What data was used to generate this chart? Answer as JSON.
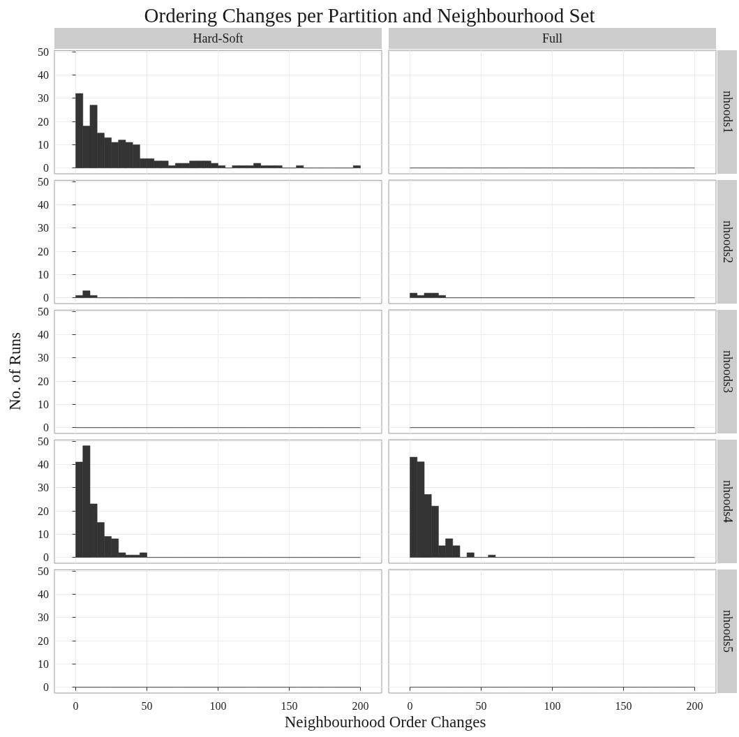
{
  "chart_data": [
    {
      "type": "histogram",
      "title": "Ordering Changes per Partition and Neighbourhood Set",
      "subtitle": "Hard-Soft",
      "color": "#333333",
      "bins": [
        0,
        5,
        10,
        15,
        20,
        25,
        30,
        35,
        40,
        45,
        50,
        55,
        60,
        65,
        70,
        75,
        80,
        85,
        90,
        95,
        100,
        105,
        110,
        115,
        120,
        125,
        130,
        135,
        140,
        145,
        150,
        155,
        160,
        165,
        170,
        175,
        180,
        185,
        190,
        195,
        200
      ],
      "values": [
        32,
        18,
        27,
        15,
        13,
        11,
        12,
        11,
        10,
        4,
        4,
        3,
        3,
        1,
        2,
        2,
        3,
        3,
        3,
        2,
        1,
        0,
        1,
        1,
        1,
        2,
        1,
        1,
        1,
        0,
        0,
        1,
        0,
        0,
        0,
        0,
        0,
        0,
        0,
        1
      ],
      "xlim": [
        -15,
        215
      ],
      "ylim": [
        -2.5,
        50.5
      ],
      "xticks": [
        0,
        50,
        100,
        150,
        200
      ],
      "yticks": [
        0,
        10,
        20,
        30,
        40,
        50
      ],
      "grid": true,
      "tick_labels": "y"
    },
    {
      "type": "histogram",
      "subtitle": "Full",
      "y2label": "nhoods1",
      "color": "#333333",
      "bins": [
        0,
        5,
        10,
        15,
        20,
        25,
        30,
        35,
        40,
        45,
        50,
        55,
        60,
        65,
        70,
        75,
        80,
        85,
        90,
        95,
        100,
        105,
        110,
        115,
        120,
        125,
        130,
        135,
        140,
        145,
        150,
        155,
        160,
        165,
        170,
        175,
        180,
        185,
        190,
        195,
        200
      ],
      "values": [
        0,
        0,
        0,
        0,
        0,
        0,
        0,
        0,
        0,
        0,
        0,
        0,
        0,
        0,
        0,
        0,
        0,
        0,
        0,
        0,
        0,
        0,
        0,
        0,
        0,
        0,
        0,
        0,
        0,
        0,
        0,
        0,
        0,
        0,
        0,
        0,
        0,
        0,
        0,
        0
      ],
      "xlim": [
        -15,
        215
      ],
      "ylim": [
        -2.5,
        50.5
      ],
      "xticks": [
        0,
        50,
        100,
        150,
        200
      ],
      "yticks": [
        0,
        10,
        20,
        30,
        40,
        50
      ],
      "grid": true,
      "tick_labels": false
    },
    {
      "type": "histogram",
      "color": "#333333",
      "bins": [
        0,
        5,
        10,
        15,
        20,
        25,
        30,
        35,
        40,
        45,
        50,
        55,
        60,
        65,
        70,
        75,
        80,
        85,
        90,
        95,
        100,
        105,
        110,
        115,
        120,
        125,
        130,
        135,
        140,
        145,
        150,
        155,
        160,
        165,
        170,
        175,
        180,
        185,
        190,
        195,
        200
      ],
      "values": [
        1,
        3,
        1,
        0,
        0,
        0,
        0,
        0,
        0,
        0,
        0,
        0,
        0,
        0,
        0,
        0,
        0,
        0,
        0,
        0,
        0,
        0,
        0,
        0,
        0,
        0,
        0,
        0,
        0,
        0,
        0,
        0,
        0,
        0,
        0,
        0,
        0,
        0,
        0,
        0
      ],
      "xlim": [
        -15,
        215
      ],
      "ylim": [
        -2.5,
        50.5
      ],
      "xticks": [
        0,
        50,
        100,
        150,
        200
      ],
      "yticks": [
        0,
        10,
        20,
        30,
        40,
        50
      ],
      "grid": true,
      "tick_labels": "y"
    },
    {
      "type": "histogram",
      "y2label": "nhoods2",
      "color": "#333333",
      "bins": [
        0,
        5,
        10,
        15,
        20,
        25,
        30,
        35,
        40,
        45,
        50,
        55,
        60,
        65,
        70,
        75,
        80,
        85,
        90,
        95,
        100,
        105,
        110,
        115,
        120,
        125,
        130,
        135,
        140,
        145,
        150,
        155,
        160,
        165,
        170,
        175,
        180,
        185,
        190,
        195,
        200
      ],
      "values": [
        2,
        1,
        2,
        2,
        1,
        0,
        0,
        0,
        0,
        0,
        0,
        0,
        0,
        0,
        0,
        0,
        0,
        0,
        0,
        0,
        0,
        0,
        0,
        0,
        0,
        0,
        0,
        0,
        0,
        0,
        0,
        0,
        0,
        0,
        0,
        0,
        0,
        0,
        0,
        0
      ],
      "xlim": [
        -15,
        215
      ],
      "ylim": [
        -2.5,
        50.5
      ],
      "xticks": [
        0,
        50,
        100,
        150,
        200
      ],
      "yticks": [
        0,
        10,
        20,
        30,
        40,
        50
      ],
      "grid": true,
      "tick_labels": false
    },
    {
      "type": "histogram",
      "ylabel": "No. of Runs",
      "color": "#333333",
      "bins": [
        0,
        5,
        10,
        15,
        20,
        25,
        30,
        35,
        40,
        45,
        50,
        55,
        60,
        65,
        70,
        75,
        80,
        85,
        90,
        95,
        100,
        105,
        110,
        115,
        120,
        125,
        130,
        135,
        140,
        145,
        150,
        155,
        160,
        165,
        170,
        175,
        180,
        185,
        190,
        195,
        200
      ],
      "values": [
        0,
        0,
        0,
        0,
        0,
        0,
        0,
        0,
        0,
        0,
        0,
        0,
        0,
        0,
        0,
        0,
        0,
        0,
        0,
        0,
        0,
        0,
        0,
        0,
        0,
        0,
        0,
        0,
        0,
        0,
        0,
        0,
        0,
        0,
        0,
        0,
        0,
        0,
        0,
        0
      ],
      "xlim": [
        -15,
        215
      ],
      "ylim": [
        -2.5,
        50.5
      ],
      "xticks": [
        0,
        50,
        100,
        150,
        200
      ],
      "yticks": [
        0,
        10,
        20,
        30,
        40,
        50
      ],
      "grid": true,
      "tick_labels": "y"
    },
    {
      "type": "histogram",
      "y2label": "nhoods3",
      "color": "#333333",
      "bins": [
        0,
        5,
        10,
        15,
        20,
        25,
        30,
        35,
        40,
        45,
        50,
        55,
        60,
        65,
        70,
        75,
        80,
        85,
        90,
        95,
        100,
        105,
        110,
        115,
        120,
        125,
        130,
        135,
        140,
        145,
        150,
        155,
        160,
        165,
        170,
        175,
        180,
        185,
        190,
        195,
        200
      ],
      "values": [
        0,
        0,
        0,
        0,
        0,
        0,
        0,
        0,
        0,
        0,
        0,
        0,
        0,
        0,
        0,
        0,
        0,
        0,
        0,
        0,
        0,
        0,
        0,
        0,
        0,
        0,
        0,
        0,
        0,
        0,
        0,
        0,
        0,
        0,
        0,
        0,
        0,
        0,
        0,
        0
      ],
      "xlim": [
        -15,
        215
      ],
      "ylim": [
        -2.5,
        50.5
      ],
      "xticks": [
        0,
        50,
        100,
        150,
        200
      ],
      "yticks": [
        0,
        10,
        20,
        30,
        40,
        50
      ],
      "grid": true,
      "tick_labels": false
    },
    {
      "type": "histogram",
      "color": "#333333",
      "bins": [
        0,
        5,
        10,
        15,
        20,
        25,
        30,
        35,
        40,
        45,
        50,
        55,
        60,
        65,
        70,
        75,
        80,
        85,
        90,
        95,
        100,
        105,
        110,
        115,
        120,
        125,
        130,
        135,
        140,
        145,
        150,
        155,
        160,
        165,
        170,
        175,
        180,
        185,
        190,
        195,
        200
      ],
      "values": [
        41,
        48,
        23,
        15,
        9,
        8,
        2,
        1,
        1,
        2,
        0,
        0,
        0,
        0,
        0,
        0,
        0,
        0,
        0,
        0,
        0,
        0,
        0,
        0,
        0,
        0,
        0,
        0,
        0,
        0,
        0,
        0,
        0,
        0,
        0,
        0,
        0,
        0,
        0,
        0
      ],
      "xlim": [
        -15,
        215
      ],
      "ylim": [
        -2.5,
        50.5
      ],
      "xticks": [
        0,
        50,
        100,
        150,
        200
      ],
      "yticks": [
        0,
        10,
        20,
        30,
        40,
        50
      ],
      "grid": true,
      "tick_labels": "y"
    },
    {
      "type": "histogram",
      "y2label": "nhoods4",
      "color": "#333333",
      "bins": [
        0,
        5,
        10,
        15,
        20,
        25,
        30,
        35,
        40,
        45,
        50,
        55,
        60,
        65,
        70,
        75,
        80,
        85,
        90,
        95,
        100,
        105,
        110,
        115,
        120,
        125,
        130,
        135,
        140,
        145,
        150,
        155,
        160,
        165,
        170,
        175,
        180,
        185,
        190,
        195,
        200
      ],
      "values": [
        43,
        41,
        27,
        22,
        5,
        8,
        5,
        0,
        2,
        0,
        0,
        1,
        0,
        0,
        0,
        0,
        0,
        0,
        0,
        0,
        0,
        0,
        0,
        0,
        0,
        0,
        0,
        0,
        0,
        0,
        0,
        0,
        0,
        0,
        0,
        0,
        0,
        0,
        0,
        0
      ],
      "xlim": [
        -15,
        215
      ],
      "ylim": [
        -2.5,
        50.5
      ],
      "xticks": [
        0,
        50,
        100,
        150,
        200
      ],
      "yticks": [
        0,
        10,
        20,
        30,
        40,
        50
      ],
      "grid": true,
      "tick_labels": false
    },
    {
      "type": "histogram",
      "xlabel": "Neighbourhood Order Changes",
      "color": "#333333",
      "bins": [
        0,
        5,
        10,
        15,
        20,
        25,
        30,
        35,
        40,
        45,
        50,
        55,
        60,
        65,
        70,
        75,
        80,
        85,
        90,
        95,
        100,
        105,
        110,
        115,
        120,
        125,
        130,
        135,
        140,
        145,
        150,
        155,
        160,
        165,
        170,
        175,
        180,
        185,
        190,
        195,
        200
      ],
      "values": [
        0,
        0,
        0,
        0,
        0,
        0,
        0,
        0,
        0,
        0,
        0,
        0,
        0,
        0,
        0,
        0,
        0,
        0,
        0,
        0,
        0,
        0,
        0,
        0,
        0,
        0,
        0,
        0,
        0,
        0,
        0,
        0,
        0,
        0,
        0,
        0,
        0,
        0,
        0,
        0
      ],
      "xlim": [
        -15,
        215
      ],
      "ylim": [
        -2.5,
        50.5
      ],
      "xticks": [
        0,
        50,
        100,
        150,
        200
      ],
      "yticks": [
        0,
        10,
        20,
        30,
        40,
        50
      ],
      "grid": true
    },
    {
      "type": "histogram",
      "y2label": "nhoods5",
      "color": "#333333",
      "bins": [
        0,
        5,
        10,
        15,
        20,
        25,
        30,
        35,
        40,
        45,
        50,
        55,
        60,
        65,
        70,
        75,
        80,
        85,
        90,
        95,
        100,
        105,
        110,
        115,
        120,
        125,
        130,
        135,
        140,
        145,
        150,
        155,
        160,
        165,
        170,
        175,
        180,
        185,
        190,
        195,
        200
      ],
      "values": [
        0,
        0,
        0,
        0,
        0,
        0,
        0,
        0,
        0,
        0,
        0,
        0,
        0,
        0,
        0,
        0,
        0,
        0,
        0,
        0,
        0,
        0,
        0,
        0,
        0,
        0,
        0,
        0,
        0,
        0,
        0,
        0,
        0,
        0,
        0,
        0,
        0,
        0,
        0,
        0
      ],
      "xlim": [
        -15,
        215
      ],
      "ylim": [
        -2.5,
        50.5
      ],
      "xticks": [
        0,
        50,
        100,
        150,
        200
      ],
      "yticks": [
        0,
        10,
        20,
        30,
        40,
        50
      ],
      "grid": true,
      "tick_labels": "x"
    }
  ]
}
